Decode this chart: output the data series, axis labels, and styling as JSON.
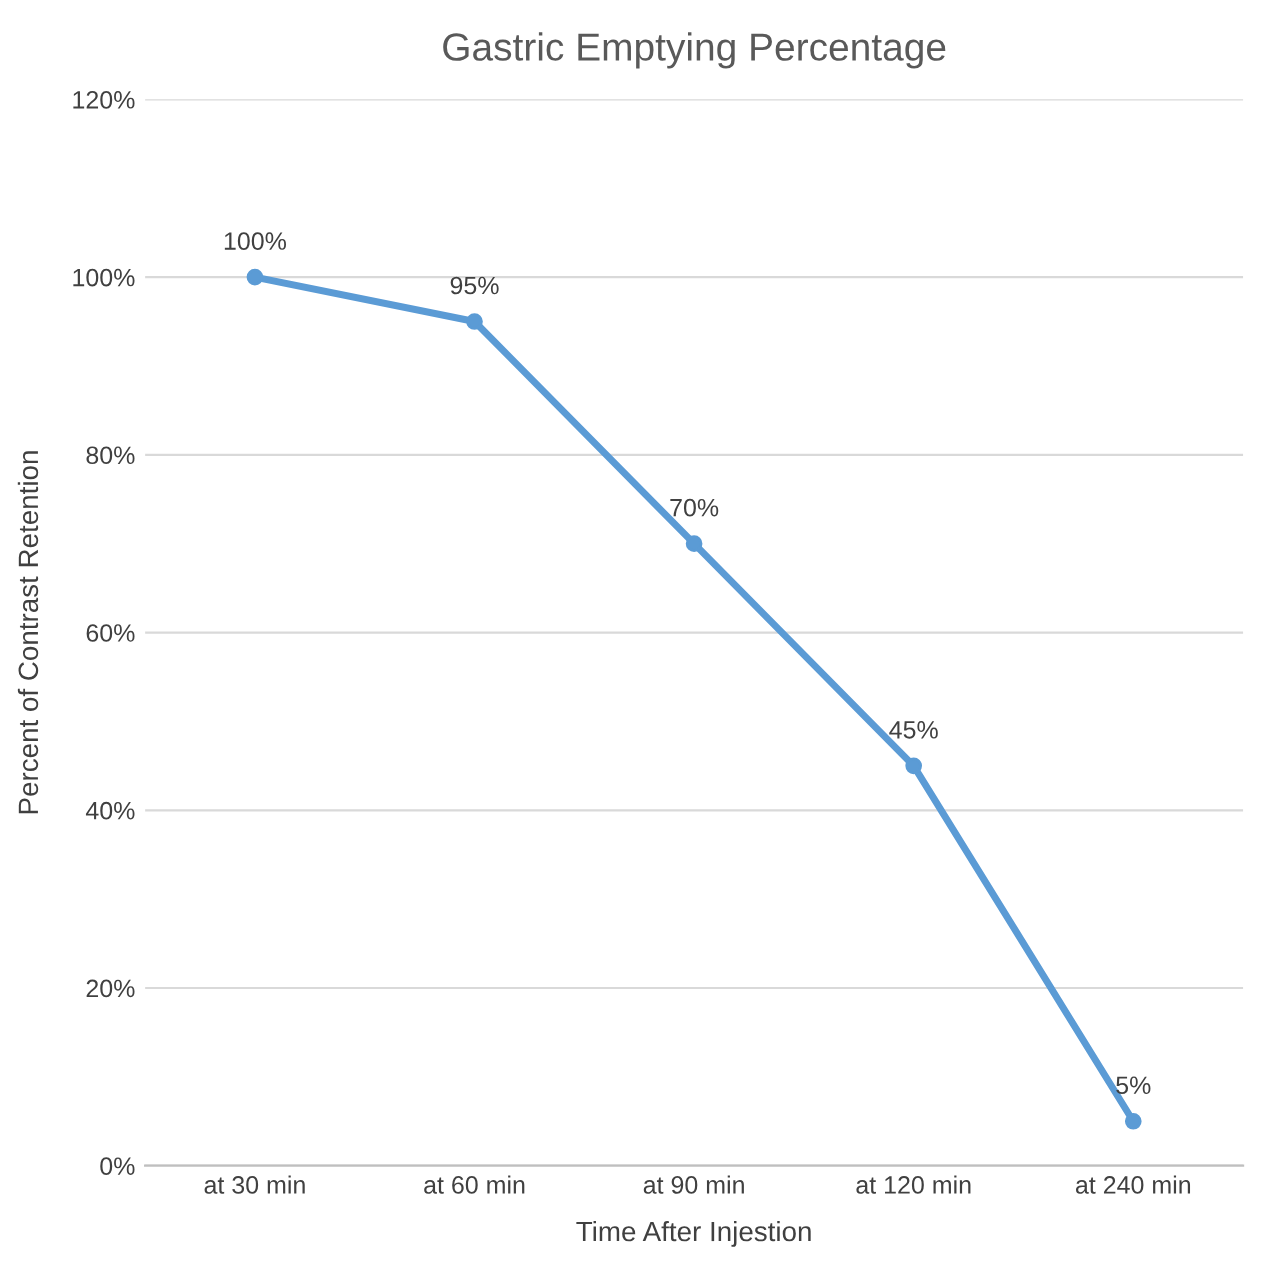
{
  "chart_data": {
    "type": "line",
    "title": "Gastric Emptying Percentage",
    "xlabel": "Time After Injestion",
    "ylabel": "Percent of Contrast Retention",
    "categories": [
      "at 30 min",
      "at 60 min",
      "at 90 min",
      "at 120 min",
      "at 240 min"
    ],
    "series": [
      {
        "color": "#5b9bd5",
        "values": [
          100,
          95,
          70,
          45,
          5
        ],
        "value_labels": [
          "100%",
          "95%",
          "70%",
          "45%",
          "5%"
        ]
      }
    ],
    "ylim": [
      0,
      120
    ],
    "yticks": [
      {
        "value": 0,
        "label": "0%"
      },
      {
        "value": 20,
        "label": "20%"
      },
      {
        "value": 40,
        "label": "40%"
      },
      {
        "value": 60,
        "label": "60%"
      },
      {
        "value": 80,
        "label": "80%"
      },
      {
        "value": 100,
        "label": "100%"
      },
      {
        "value": 120,
        "label": "120%"
      }
    ],
    "grid": "y",
    "marker": "circle",
    "line_style": "solid",
    "legend": false
  }
}
